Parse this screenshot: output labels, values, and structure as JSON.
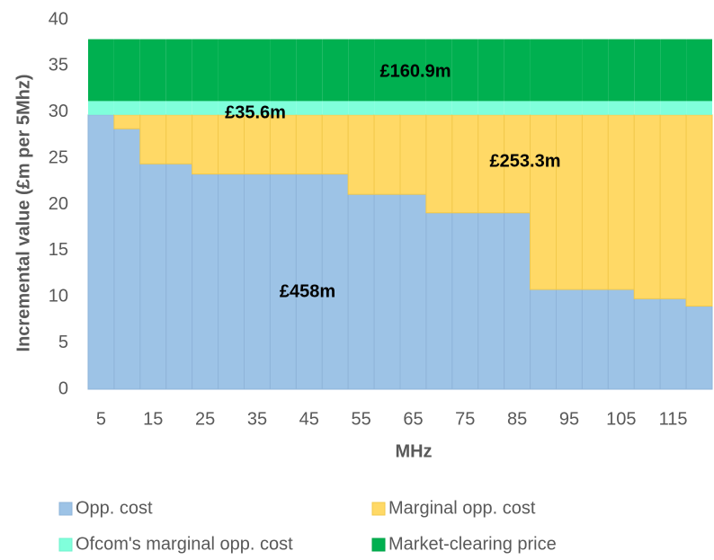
{
  "chart_data": {
    "type": "stacked_bar",
    "xlabel": "MHz",
    "ylabel": "Incremental value (£m per 5Mhz)",
    "categories": [
      "5",
      null,
      "15",
      null,
      "25",
      null,
      "35",
      null,
      "45",
      null,
      "55",
      null,
      "65",
      null,
      "75",
      null,
      "85",
      null,
      "95",
      null,
      "105",
      null,
      "115",
      null
    ],
    "series": [
      {
        "name": "Opp. cost",
        "color": "#9dc3e6",
        "values": [
          29.7,
          28.2,
          24.4,
          24.4,
          23.3,
          23.3,
          23.3,
          23.3,
          23.3,
          23.3,
          21.1,
          21.1,
          21.1,
          19.1,
          19.1,
          19.1,
          19.1,
          10.8,
          10.8,
          10.8,
          10.8,
          9.8,
          9.8,
          9.0
        ]
      },
      {
        "name": "Marginal opp. cost",
        "color": "#ffd966",
        "values": [
          0,
          1.5,
          5.3,
          5.3,
          6.4,
          6.4,
          6.4,
          6.4,
          6.4,
          6.4,
          8.6,
          8.6,
          8.6,
          10.6,
          10.6,
          10.6,
          10.6,
          18.9,
          18.9,
          18.9,
          18.9,
          19.9,
          19.9,
          20.7
        ]
      },
      {
        "name": "Ofcom's marginal opp. cost",
        "color": "#80ffdb",
        "values": [
          1.5,
          1.5,
          1.5,
          1.5,
          1.5,
          1.5,
          1.5,
          1.5,
          1.5,
          1.5,
          1.5,
          1.5,
          1.5,
          1.5,
          1.5,
          1.5,
          1.5,
          1.5,
          1.5,
          1.5,
          1.5,
          1.5,
          1.5,
          1.5
        ]
      },
      {
        "name": "Market-clearing price",
        "color": "#00b050",
        "values": [
          6.7,
          6.7,
          6.7,
          6.7,
          6.7,
          6.7,
          6.7,
          6.7,
          6.7,
          6.7,
          6.7,
          6.7,
          6.7,
          6.7,
          6.7,
          6.7,
          6.7,
          6.7,
          6.7,
          6.7,
          6.7,
          6.7,
          6.7,
          6.7
        ]
      }
    ],
    "annotations": [
      "£160.9m",
      "£35.6m",
      "£253.3m",
      "£458m"
    ],
    "ylim": [
      0,
      40
    ],
    "yticks": [
      0,
      5,
      10,
      15,
      20,
      25,
      30,
      35,
      40
    ],
    "grid": false,
    "legend": "bottom"
  }
}
